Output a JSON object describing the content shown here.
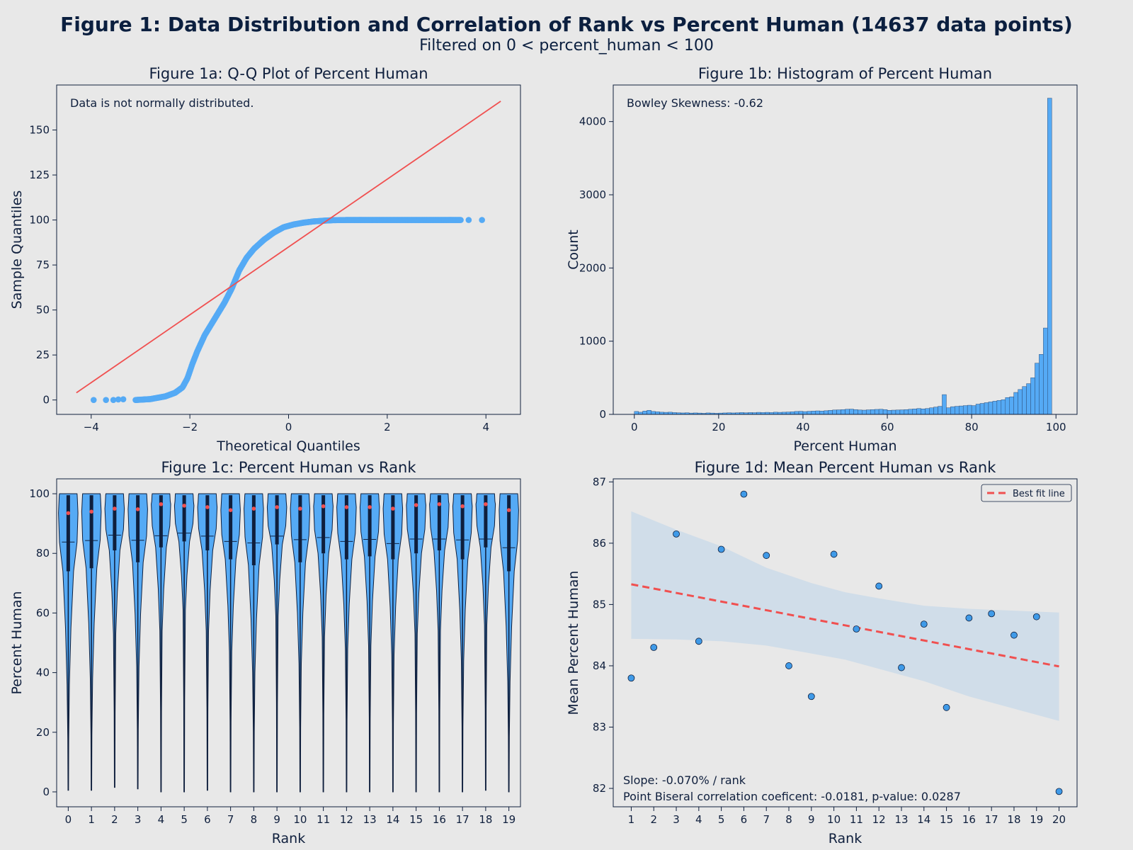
{
  "header": {
    "title": "Figure 1: Data Distribution and Correlation of Rank vs Percent Human (14637 data points)",
    "subtitle": "Filtered on 0 < percent_human < 100"
  },
  "colors": {
    "background": "#e8e8e8",
    "accent_blue": "#55aaf5",
    "accent_red": "#f05050",
    "navy": "#0f1f3d",
    "band": "#d0dde9"
  },
  "chart_data": [
    {
      "id": "qq",
      "type": "scatter",
      "title": "Figure 1a: Q-Q Plot of Percent Human",
      "xlabel": "Theoretical Quantiles",
      "ylabel": "Sample Quantiles",
      "annotation": "Data is not normally distributed.",
      "xlim": [
        -4.7,
        4.7
      ],
      "ylim": [
        -8,
        175
      ],
      "xticks": [
        -4,
        -2,
        0,
        2,
        4
      ],
      "yticks": [
        0,
        25,
        50,
        75,
        100,
        125,
        150
      ],
      "reference_line": {
        "x": [
          -4.3,
          4.3
        ],
        "y": [
          4,
          166
        ]
      },
      "curve": {
        "x": [
          -3.1,
          -2.8,
          -2.5,
          -2.3,
          -2.15,
          -2.05,
          -1.95,
          -1.85,
          -1.7,
          -1.5,
          -1.3,
          -1.15,
          -1.0,
          -0.85,
          -0.7,
          -0.5,
          -0.3,
          -0.1,
          0.1,
          0.3,
          0.5,
          0.7,
          0.9,
          1.2,
          1.6,
          2.0,
          2.5,
          3.0,
          3.5
        ],
        "y": [
          0,
          0.5,
          2,
          4,
          7,
          12,
          20,
          27,
          36,
          45,
          54,
          62,
          72,
          79,
          84,
          89,
          93,
          96,
          97.5,
          98.5,
          99.2,
          99.6,
          99.9,
          100,
          100,
          100,
          100,
          100,
          100
        ]
      },
      "outliers": {
        "x": [
          -3.95,
          -3.7,
          -3.55,
          -3.45,
          -3.35,
          3.65,
          3.92
        ],
        "y": [
          0,
          0,
          0,
          0.3,
          0.4,
          100,
          100
        ]
      }
    },
    {
      "id": "hist",
      "type": "bar",
      "title": "Figure 1b: Histogram of Percent Human",
      "xlabel": "Percent Human",
      "ylabel": "Count",
      "annotation": "Bowley Skewness: -0.62",
      "xlim": [
        -5,
        105
      ],
      "ylim": [
        0,
        4500
      ],
      "xticks": [
        0,
        20,
        40,
        60,
        80,
        100
      ],
      "yticks": [
        0,
        1000,
        2000,
        3000,
        4000
      ],
      "bin_width": 1,
      "counts": [
        40,
        30,
        45,
        55,
        40,
        35,
        30,
        28,
        30,
        25,
        22,
        20,
        22,
        18,
        20,
        18,
        15,
        20,
        18,
        15,
        18,
        20,
        22,
        20,
        22,
        25,
        22,
        25,
        24,
        28,
        25,
        28,
        25,
        30,
        28,
        30,
        32,
        35,
        40,
        42,
        38,
        42,
        45,
        48,
        45,
        50,
        55,
        60,
        62,
        65,
        70,
        72,
        65,
        60,
        58,
        62,
        65,
        68,
        70,
        65,
        55,
        58,
        60,
        62,
        65,
        70,
        75,
        80,
        75,
        80,
        90,
        100,
        110,
        270,
        90,
        105,
        110,
        115,
        120,
        125,
        120,
        140,
        150,
        160,
        170,
        180,
        190,
        200,
        230,
        240,
        300,
        340,
        380,
        420,
        500,
        700,
        820,
        1180,
        4320
      ]
    },
    {
      "id": "violin",
      "type": "violin",
      "title": "Figure 1c: Percent Human vs Rank",
      "xlabel": "Rank",
      "ylabel": "Percent Human",
      "xlim": [
        -0.5,
        19.5
      ],
      "ylim": [
        -5,
        105
      ],
      "yticks": [
        0,
        20,
        40,
        60,
        80,
        100
      ],
      "categories": [
        "0",
        "1",
        "2",
        "3",
        "4",
        "5",
        "6",
        "7",
        "8",
        "9",
        "10",
        "11",
        "12",
        "13",
        "14",
        "15",
        "16",
        "17",
        "18",
        "19"
      ],
      "min": [
        0.5,
        0.5,
        1.5,
        1,
        0,
        0,
        0.5,
        0,
        0,
        0,
        0,
        0,
        0,
        0,
        0,
        0,
        0,
        0,
        0.5,
        0
      ],
      "q1": [
        74,
        75,
        81,
        77,
        82,
        84,
        81,
        78,
        76,
        83,
        77,
        80,
        78,
        79,
        78,
        80,
        81,
        78,
        82,
        74
      ],
      "q3": [
        99.5,
        99.5,
        99.5,
        99.5,
        99.5,
        99.5,
        99.5,
        99.5,
        99.5,
        99.5,
        99.5,
        99.5,
        99.5,
        99.5,
        99.5,
        99.5,
        99.5,
        99.5,
        99.5,
        99.5
      ],
      "mean": [
        83.8,
        84.3,
        86.1,
        84.4,
        85.9,
        86.8,
        85.8,
        84.0,
        83.5,
        85.8,
        84.6,
        85.3,
        84.0,
        84.7,
        83.3,
        84.8,
        84.8,
        84.5,
        84.8,
        81.9
      ],
      "median": [
        93.5,
        94,
        95,
        94.8,
        96.5,
        96,
        95.5,
        94.5,
        95,
        95.5,
        95,
        95.8,
        95.5,
        95.5,
        95,
        96.2,
        96.5,
        95.8,
        96.5,
        94.5
      ],
      "whisker_low": [
        36,
        38,
        53,
        42,
        54,
        61,
        54,
        47,
        40,
        59,
        43,
        52,
        48,
        49,
        46,
        53,
        54,
        44,
        56,
        37
      ]
    },
    {
      "id": "mean",
      "type": "scatter",
      "title": "Figure 1d: Mean Percent Human vs Rank",
      "xlabel": "Rank",
      "ylabel": "Mean Percent Human",
      "xlim": [
        0.2,
        20.8
      ],
      "ylim": [
        81.7,
        87.05
      ],
      "xticks": [
        1,
        2,
        3,
        4,
        5,
        6,
        7,
        8,
        9,
        10,
        11,
        12,
        13,
        14,
        15,
        16,
        17,
        18,
        19,
        20
      ],
      "yticks": [
        82,
        83,
        84,
        85,
        86,
        87
      ],
      "x": [
        1,
        2,
        3,
        4,
        5,
        6,
        7,
        8,
        9,
        10,
        11,
        12,
        13,
        14,
        15,
        16,
        17,
        18,
        19,
        20
      ],
      "y": [
        83.8,
        84.3,
        86.15,
        84.4,
        85.9,
        86.8,
        85.8,
        84.0,
        83.5,
        85.82,
        84.6,
        85.3,
        83.97,
        84.68,
        83.32,
        84.78,
        84.85,
        84.5,
        84.8,
        81.95
      ],
      "fit": {
        "x": [
          1,
          20
        ],
        "y": [
          85.33,
          83.99
        ]
      },
      "band": {
        "x": [
          1,
          3,
          5,
          7,
          9,
          10.5,
          12,
          14,
          16,
          18,
          20
        ],
        "upper": [
          86.52,
          86.22,
          85.95,
          85.6,
          85.35,
          85.2,
          85.1,
          84.98,
          84.93,
          84.9,
          84.87
        ],
        "lower": [
          84.44,
          84.43,
          84.4,
          84.33,
          84.2,
          84.1,
          83.95,
          83.75,
          83.5,
          83.3,
          83.1
        ]
      },
      "legend": {
        "label": "Best fit line",
        "position": "upper right"
      },
      "annotations": [
        "Slope: -0.070% /  rank",
        "Point Biseral correlation coeficent: -0.0181, p-value: 0.0287"
      ]
    }
  ]
}
